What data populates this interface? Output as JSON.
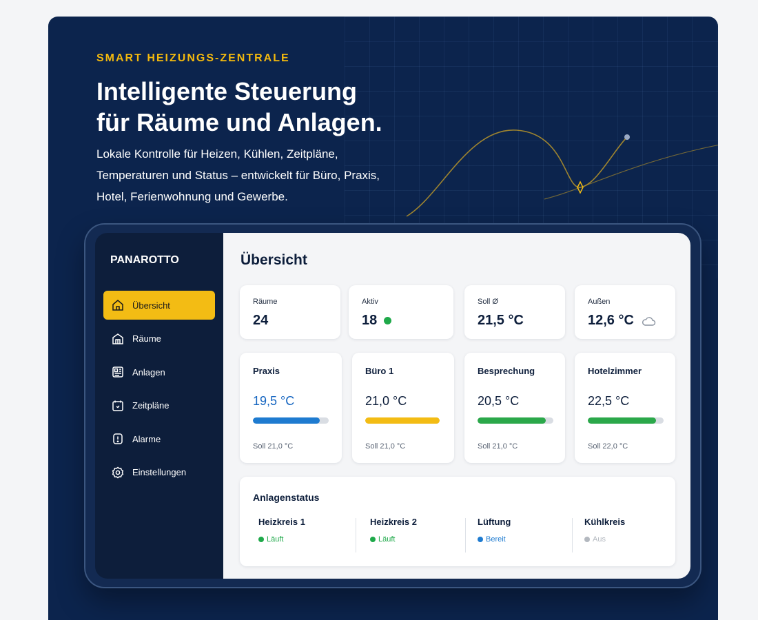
{
  "hero": {
    "eyebrow": "SMART HEIZUNGS-ZENTRALE",
    "headline_line1": "Intelligente Steuerung",
    "headline_line2": "für Räume und Anlagen.",
    "subline": "Lokale Kontrolle für Heizen, Kühlen, Zeitpläne, Temperaturen und Status – entwickelt für Büro, Praxis, Hotel, Ferienwohnung und Gewerbe."
  },
  "app": {
    "brand": "PANAROTTO",
    "nav": [
      {
        "label": "Übersicht",
        "icon": "home-icon",
        "active": true
      },
      {
        "label": "Räume",
        "icon": "rooms-icon",
        "active": false
      },
      {
        "label": "Anlagen",
        "icon": "plant-icon",
        "active": false
      },
      {
        "label": "Zeitpläne",
        "icon": "calendar-icon",
        "active": false
      },
      {
        "label": "Alarme",
        "icon": "alert-icon",
        "active": false
      },
      {
        "label": "Einstellungen",
        "icon": "gear-icon",
        "active": false
      }
    ],
    "page_title": "Übersicht",
    "stats": [
      {
        "label": "Räume",
        "value": "24"
      },
      {
        "label": "Aktiv",
        "value": "18",
        "indicator": "green-dot"
      },
      {
        "label": "Soll Ø",
        "value": "21,5 °C"
      },
      {
        "label": "Außen",
        "value": "12,6 °C",
        "icon": "cloud-icon"
      }
    ],
    "rooms": [
      {
        "name": "Praxis",
        "temp": "19,5 °C",
        "soll": "Soll 21,0 °C",
        "progress": 0.88,
        "color": "#1e7bd0"
      },
      {
        "name": "Büro 1",
        "temp": "21,0 °C",
        "soll": "Soll 21,0 °C",
        "progress": 1.0,
        "color": "#f3bc14"
      },
      {
        "name": "Besprechung",
        "temp": "20,5 °C",
        "soll": "Soll 21,0 °C",
        "progress": 0.9,
        "color": "#2ba84a"
      },
      {
        "name": "Hotelzimmer",
        "temp": "22,5 °C",
        "soll": "Soll 22,0 °C",
        "progress": 0.9,
        "color": "#2ba84a"
      }
    ],
    "status": {
      "title": "Anlagenstatus",
      "items": [
        {
          "name": "Heizkreis 1",
          "state": "Läuft",
          "color": "#1fa94a"
        },
        {
          "name": "Heizkreis 2",
          "state": "Läuft",
          "color": "#1fa94a"
        },
        {
          "name": "Lüftung",
          "state": "Bereit",
          "color": "#1e7bd0"
        },
        {
          "name": "Kühlkreis",
          "state": "Aus",
          "color": "#b3b8bf"
        }
      ]
    }
  },
  "colors": {
    "hero_bg": "#0c244d",
    "accent": "#f3bc14",
    "sidebar_bg": "#0d1e3b"
  }
}
